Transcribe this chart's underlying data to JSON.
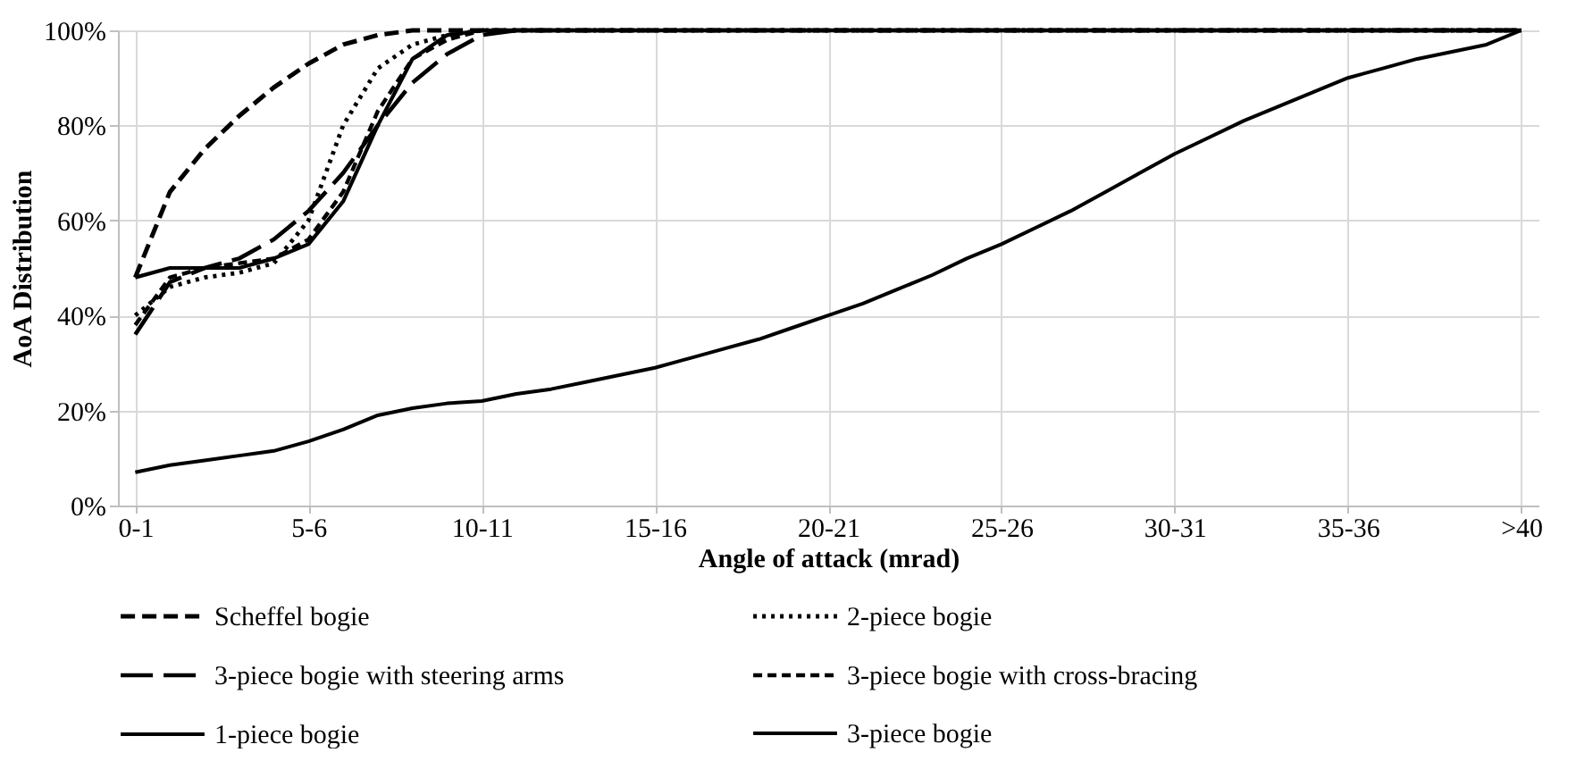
{
  "chart_data": {
    "type": "line",
    "xlabel": "Angle of attack  (mrad)",
    "ylabel": "AoA Distribution",
    "categories": [
      "0-1",
      null,
      null,
      null,
      null,
      "5-6",
      null,
      null,
      null,
      null,
      "10-11",
      null,
      null,
      null,
      null,
      "15-16",
      null,
      null,
      null,
      null,
      "20-21",
      null,
      null,
      null,
      null,
      "25-26",
      null,
      null,
      null,
      null,
      "30-31",
      null,
      null,
      null,
      null,
      "35-36",
      null,
      null,
      null,
      null,
      ">40"
    ],
    "ylim": [
      0,
      100
    ],
    "yticks": [
      {
        "value": 0,
        "label": "0%"
      },
      {
        "value": 20,
        "label": "20%"
      },
      {
        "value": 40,
        "label": "40%"
      },
      {
        "value": 60,
        "label": "60%"
      },
      {
        "value": 80,
        "label": "80%"
      },
      {
        "value": 100,
        "label": "100%"
      }
    ],
    "grid": true,
    "legend": "bottom",
    "marker": "none",
    "series": [
      {
        "name": "Scheffel bogie",
        "color": "#000000",
        "line_style": "dashed",
        "values": [
          48,
          66,
          75,
          82,
          88,
          93,
          97,
          99,
          100,
          100,
          100,
          100,
          100,
          100,
          100,
          100,
          100,
          100,
          100,
          100,
          100,
          100,
          100,
          100,
          100,
          100,
          100,
          100,
          100,
          100,
          100,
          100,
          100,
          100,
          100,
          100,
          100,
          100,
          100,
          100,
          100
        ]
      },
      {
        "name": "2-piece bogie",
        "color": "#000000",
        "line_style": "dotted",
        "values": [
          40,
          46,
          48,
          49,
          51,
          60,
          80,
          92,
          97,
          99,
          100,
          100,
          100,
          100,
          100,
          100,
          100,
          100,
          100,
          100,
          100,
          100,
          100,
          100,
          100,
          100,
          100,
          100,
          100,
          100,
          100,
          100,
          100,
          100,
          100,
          100,
          100,
          100,
          100,
          100,
          100
        ]
      },
      {
        "name": "3-piece bogie with steering arms",
        "color": "#000000",
        "line_style": "dashed",
        "values": [
          36,
          47,
          50,
          52,
          56,
          62,
          70,
          80,
          89,
          95,
          99,
          100,
          100,
          100,
          100,
          100,
          100,
          100,
          100,
          100,
          100,
          100,
          100,
          100,
          100,
          100,
          100,
          100,
          100,
          100,
          100,
          100,
          100,
          100,
          100,
          100,
          100,
          100,
          100,
          100,
          100
        ]
      },
      {
        "name": "3-piece bogie with cross-bracing",
        "color": "#000000",
        "line_style": "dashed",
        "values": [
          38,
          48,
          50,
          51,
          52,
          56,
          66,
          83,
          94,
          98,
          100,
          100,
          100,
          100,
          100,
          100,
          100,
          100,
          100,
          100,
          100,
          100,
          100,
          100,
          100,
          100,
          100,
          100,
          100,
          100,
          100,
          100,
          100,
          100,
          100,
          100,
          100,
          100,
          100,
          100,
          100
        ]
      },
      {
        "name": "1-piece bogie",
        "color": "#000000",
        "line_style": "solid",
        "values": [
          48,
          50,
          50,
          50,
          52,
          55,
          64,
          80,
          94,
          99,
          100,
          100,
          100,
          100,
          100,
          100,
          100,
          100,
          100,
          100,
          100,
          100,
          100,
          100,
          100,
          100,
          100,
          100,
          100,
          100,
          100,
          100,
          100,
          100,
          100,
          100,
          100,
          100,
          100,
          100,
          100
        ]
      },
      {
        "name": "3-piece bogie",
        "color": "#000000",
        "line_style": "solid",
        "values": [
          7,
          8.5,
          9.5,
          10.5,
          11.5,
          13.5,
          16,
          19,
          20.5,
          21.5,
          22,
          23.5,
          24.5,
          26,
          27.5,
          29,
          31,
          33,
          35,
          37.5,
          40,
          42.5,
          45.5,
          48.5,
          52,
          55,
          58.5,
          62,
          66,
          70,
          74,
          77.5,
          81,
          84,
          87,
          90,
          92,
          94,
          95.5,
          97,
          100
        ]
      }
    ]
  }
}
